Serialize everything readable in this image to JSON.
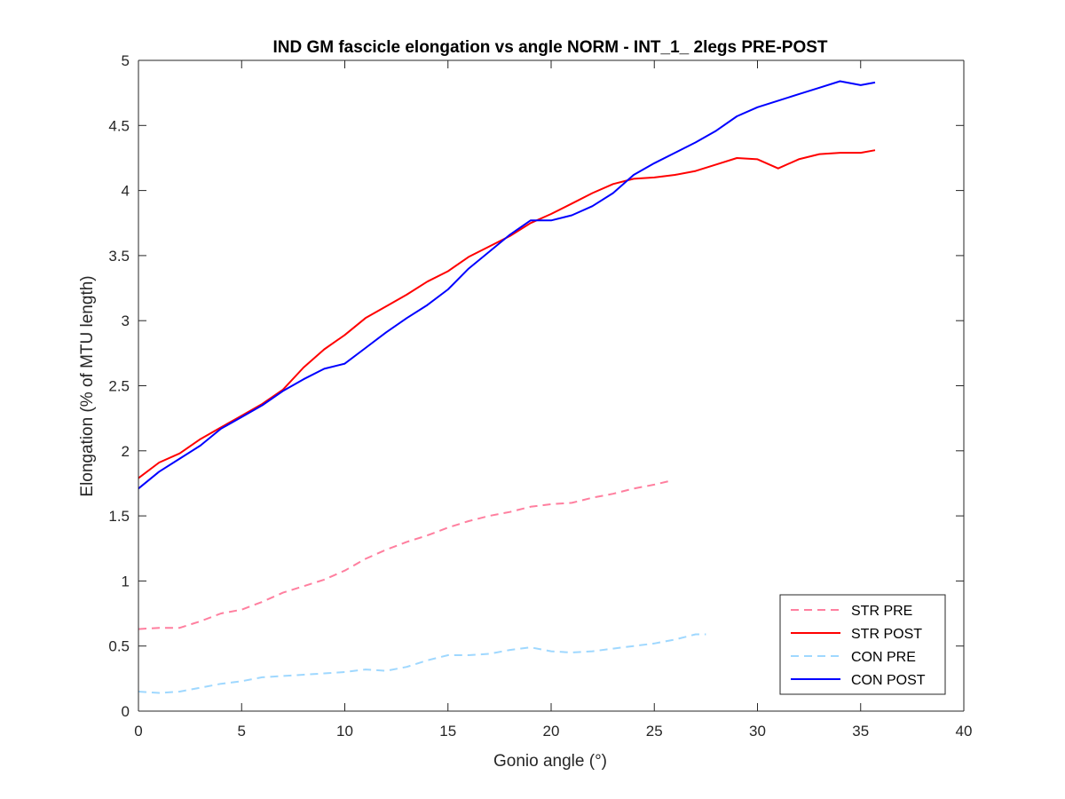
{
  "chart_data": {
    "type": "line",
    "title": "IND GM fascicle elongation vs angle NORM - INT_1_ 2legs PRE-POST",
    "xlabel": "Gonio angle (°)",
    "ylabel": "Elongation (% of MTU length)",
    "xlim": [
      0,
      40
    ],
    "ylim": [
      0,
      5
    ],
    "xticks": [
      0,
      5,
      10,
      15,
      20,
      25,
      30,
      35,
      40
    ],
    "yticks": [
      0,
      0.5,
      1,
      1.5,
      2,
      2.5,
      3,
      3.5,
      4,
      4.5,
      5
    ],
    "ytick_labels": [
      "0",
      "0.5",
      "1",
      "1.5",
      "2",
      "2.5",
      "3",
      "3.5",
      "4",
      "4.5",
      "5"
    ],
    "grid": false,
    "legend_position": "bottom-right",
    "series": [
      {
        "name": "STR PRE",
        "color": "#FF7F9F",
        "dash": "dashed",
        "points": [
          [
            0,
            0.63
          ],
          [
            1,
            0.64
          ],
          [
            2,
            0.64
          ],
          [
            3,
            0.69
          ],
          [
            4,
            0.75
          ],
          [
            5,
            0.78
          ],
          [
            6,
            0.84
          ],
          [
            7,
            0.91
          ],
          [
            8,
            0.96
          ],
          [
            9,
            1.01
          ],
          [
            10,
            1.08
          ],
          [
            11,
            1.17
          ],
          [
            12,
            1.24
          ],
          [
            13,
            1.3
          ],
          [
            14,
            1.35
          ],
          [
            15,
            1.41
          ],
          [
            16,
            1.46
          ],
          [
            17,
            1.5
          ],
          [
            18,
            1.53
          ],
          [
            19,
            1.57
          ],
          [
            20,
            1.59
          ],
          [
            21,
            1.6
          ],
          [
            22,
            1.64
          ],
          [
            23,
            1.67
          ],
          [
            24,
            1.71
          ],
          [
            25,
            1.74
          ],
          [
            25.8,
            1.77
          ]
        ]
      },
      {
        "name": "STR POST",
        "color": "#FF0000",
        "dash": "solid",
        "points": [
          [
            0,
            1.79
          ],
          [
            1,
            1.91
          ],
          [
            2,
            1.98
          ],
          [
            3,
            2.09
          ],
          [
            4,
            2.18
          ],
          [
            5,
            2.27
          ],
          [
            6,
            2.36
          ],
          [
            7,
            2.47
          ],
          [
            8,
            2.64
          ],
          [
            9,
            2.78
          ],
          [
            10,
            2.89
          ],
          [
            11,
            3.02
          ],
          [
            12,
            3.11
          ],
          [
            13,
            3.2
          ],
          [
            14,
            3.3
          ],
          [
            15,
            3.38
          ],
          [
            16,
            3.49
          ],
          [
            17,
            3.57
          ],
          [
            18,
            3.65
          ],
          [
            19,
            3.75
          ],
          [
            20,
            3.82
          ],
          [
            21,
            3.9
          ],
          [
            22,
            3.98
          ],
          [
            23,
            4.05
          ],
          [
            24,
            4.09
          ],
          [
            25,
            4.1
          ],
          [
            26,
            4.12
          ],
          [
            27,
            4.15
          ],
          [
            28,
            4.2
          ],
          [
            29,
            4.25
          ],
          [
            30,
            4.24
          ],
          [
            31,
            4.17
          ],
          [
            32,
            4.24
          ],
          [
            33,
            4.28
          ],
          [
            34,
            4.29
          ],
          [
            35,
            4.29
          ],
          [
            35.7,
            4.31
          ]
        ]
      },
      {
        "name": "CON PRE",
        "color": "#9FD8FF",
        "dash": "dashed",
        "points": [
          [
            0,
            0.15
          ],
          [
            1,
            0.14
          ],
          [
            2,
            0.15
          ],
          [
            3,
            0.18
          ],
          [
            4,
            0.21
          ],
          [
            5,
            0.23
          ],
          [
            6,
            0.26
          ],
          [
            7,
            0.27
          ],
          [
            8,
            0.28
          ],
          [
            9,
            0.29
          ],
          [
            10,
            0.3
          ],
          [
            11,
            0.32
          ],
          [
            12,
            0.31
          ],
          [
            13,
            0.34
          ],
          [
            14,
            0.39
          ],
          [
            15,
            0.43
          ],
          [
            16,
            0.43
          ],
          [
            17,
            0.44
          ],
          [
            18,
            0.47
          ],
          [
            19,
            0.49
          ],
          [
            20,
            0.46
          ],
          [
            21,
            0.45
          ],
          [
            22,
            0.46
          ],
          [
            23,
            0.48
          ],
          [
            24,
            0.5
          ],
          [
            25,
            0.52
          ],
          [
            26,
            0.55
          ],
          [
            27,
            0.59
          ],
          [
            27.5,
            0.59
          ]
        ]
      },
      {
        "name": "CON POST",
        "color": "#0000FF",
        "dash": "solid",
        "points": [
          [
            0,
            1.71
          ],
          [
            1,
            1.84
          ],
          [
            2,
            1.94
          ],
          [
            3,
            2.04
          ],
          [
            4,
            2.17
          ],
          [
            5,
            2.26
          ],
          [
            6,
            2.35
          ],
          [
            7,
            2.46
          ],
          [
            8,
            2.55
          ],
          [
            9,
            2.63
          ],
          [
            10,
            2.67
          ],
          [
            11,
            2.79
          ],
          [
            12,
            2.91
          ],
          [
            13,
            3.02
          ],
          [
            14,
            3.12
          ],
          [
            15,
            3.24
          ],
          [
            16,
            3.4
          ],
          [
            17,
            3.53
          ],
          [
            18,
            3.66
          ],
          [
            19,
            3.77
          ],
          [
            20,
            3.77
          ],
          [
            21,
            3.81
          ],
          [
            22,
            3.88
          ],
          [
            23,
            3.98
          ],
          [
            24,
            4.12
          ],
          [
            25,
            4.21
          ],
          [
            26,
            4.29
          ],
          [
            27,
            4.37
          ],
          [
            28,
            4.46
          ],
          [
            29,
            4.57
          ],
          [
            30,
            4.64
          ],
          [
            31,
            4.69
          ],
          [
            32,
            4.74
          ],
          [
            33,
            4.79
          ],
          [
            34,
            4.84
          ],
          [
            35,
            4.81
          ],
          [
            35.7,
            4.83
          ]
        ]
      }
    ]
  }
}
